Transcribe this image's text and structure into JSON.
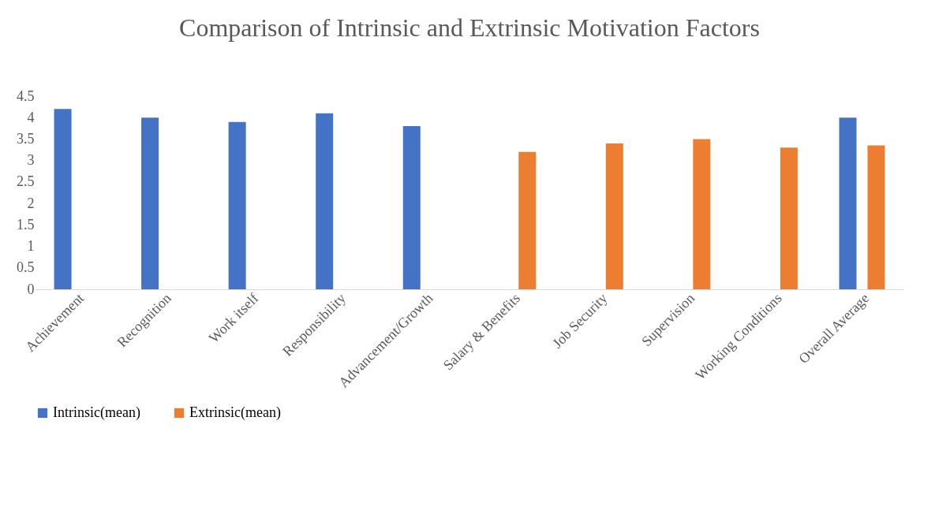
{
  "chart_data": {
    "type": "bar",
    "title": "Comparison of Intrinsic and Extrinsic Motivation Factors",
    "categories": [
      "Achievement",
      "Recognition",
      "Work itself",
      "Responsibility",
      "Advancement/Growth",
      "Salary & Benefits",
      "Job Security",
      "Supervision",
      "Working Conditions",
      "Overall Average"
    ],
    "series": [
      {
        "name": "Intrinsic(mean)",
        "color": "#4472c4",
        "values": [
          4.2,
          4.0,
          3.9,
          4.1,
          3.8,
          null,
          null,
          null,
          null,
          4.0
        ]
      },
      {
        "name": "Extrinsic(mean)",
        "color": "#ed7d31",
        "values": [
          null,
          null,
          null,
          null,
          null,
          3.2,
          3.4,
          3.5,
          3.3,
          3.35
        ]
      }
    ],
    "ylim": [
      0,
      4.5
    ],
    "yticks": [
      0,
      0.5,
      1,
      1.5,
      2,
      2.5,
      3,
      3.5,
      4,
      4.5
    ],
    "grid": false,
    "legend": "bottom"
  }
}
